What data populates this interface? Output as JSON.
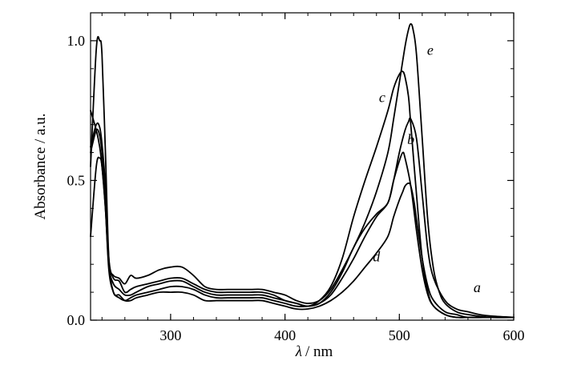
{
  "chart_data": {
    "type": "line",
    "xlabel": "λ / nm",
    "xlabel_var": "λ",
    "xlabel_unit": "/ nm",
    "ylabel": "Absorbance / a.u.",
    "xlim": [
      230,
      600
    ],
    "ylim": [
      0.0,
      1.1
    ],
    "x_ticks": [
      300,
      400,
      500,
      600
    ],
    "x_tick_labels": [
      "300",
      "400",
      "500",
      "600"
    ],
    "x_minor_step": 20,
    "y_ticks": [
      0.0,
      0.5,
      1.0
    ],
    "y_tick_labels": [
      "0.0",
      "0.5",
      "1.0"
    ],
    "y_minor_step": 0.1,
    "grid": false,
    "series": [
      {
        "name": "a",
        "color": "#000000",
        "x": [
          230,
          235,
          238,
          240,
          243,
          246,
          250,
          255,
          260,
          265,
          270,
          280,
          290,
          300,
          310,
          320,
          330,
          340,
          350,
          360,
          370,
          380,
          390,
          400,
          410,
          420,
          430,
          440,
          450,
          460,
          470,
          480,
          490,
          495,
          500,
          505,
          508,
          510,
          515,
          520,
          525,
          530,
          540,
          550,
          560,
          570,
          580,
          600
        ],
        "y": [
          0.3,
          0.55,
          0.58,
          0.55,
          0.4,
          0.18,
          0.1,
          0.08,
          0.07,
          0.08,
          0.09,
          0.1,
          0.11,
          0.12,
          0.12,
          0.11,
          0.09,
          0.08,
          0.08,
          0.08,
          0.08,
          0.08,
          0.07,
          0.06,
          0.05,
          0.05,
          0.06,
          0.1,
          0.17,
          0.26,
          0.33,
          0.38,
          0.42,
          0.5,
          0.6,
          0.68,
          0.71,
          0.72,
          0.65,
          0.45,
          0.25,
          0.15,
          0.07,
          0.04,
          0.03,
          0.02,
          0.015,
          0.01
        ]
      },
      {
        "name": "b",
        "color": "#000000",
        "x": [
          230,
          235,
          238,
          240,
          243,
          246,
          250,
          255,
          260,
          265,
          270,
          280,
          290,
          300,
          310,
          320,
          330,
          340,
          350,
          360,
          370,
          380,
          390,
          400,
          410,
          420,
          430,
          440,
          450,
          460,
          470,
          480,
          490,
          495,
          500,
          503,
          505,
          510,
          515,
          520,
          525,
          530,
          540,
          550,
          560,
          570,
          580,
          600
        ],
        "y": [
          0.6,
          0.68,
          0.66,
          0.6,
          0.45,
          0.2,
          0.13,
          0.11,
          0.09,
          0.09,
          0.1,
          0.12,
          0.13,
          0.14,
          0.14,
          0.12,
          0.1,
          0.09,
          0.09,
          0.09,
          0.09,
          0.09,
          0.08,
          0.07,
          0.06,
          0.05,
          0.06,
          0.09,
          0.15,
          0.22,
          0.3,
          0.37,
          0.42,
          0.5,
          0.57,
          0.6,
          0.58,
          0.48,
          0.32,
          0.18,
          0.09,
          0.05,
          0.02,
          0.01,
          0.01,
          0.01,
          0.01,
          0.01
        ]
      },
      {
        "name": "c",
        "color": "#000000",
        "x": [
          230,
          235,
          238,
          240,
          243,
          246,
          250,
          255,
          260,
          265,
          270,
          280,
          290,
          300,
          310,
          320,
          330,
          340,
          350,
          360,
          370,
          380,
          390,
          400,
          410,
          420,
          430,
          440,
          450,
          460,
          470,
          480,
          490,
          495,
          500,
          503,
          505,
          508,
          510,
          515,
          520,
          525,
          530,
          540,
          550,
          560,
          580,
          600
        ],
        "y": [
          0.62,
          0.7,
          0.69,
          0.63,
          0.48,
          0.22,
          0.15,
          0.14,
          0.1,
          0.11,
          0.12,
          0.13,
          0.14,
          0.15,
          0.15,
          0.13,
          0.11,
          0.1,
          0.1,
          0.1,
          0.1,
          0.1,
          0.09,
          0.07,
          0.06,
          0.05,
          0.07,
          0.12,
          0.22,
          0.37,
          0.5,
          0.62,
          0.75,
          0.83,
          0.88,
          0.89,
          0.87,
          0.8,
          0.7,
          0.45,
          0.22,
          0.1,
          0.05,
          0.02,
          0.01,
          0.01,
          0.01,
          0.01
        ]
      },
      {
        "name": "d",
        "color": "#000000",
        "x": [
          230,
          235,
          238,
          240,
          243,
          246,
          250,
          255,
          260,
          265,
          270,
          280,
          290,
          300,
          310,
          320,
          330,
          340,
          350,
          360,
          370,
          380,
          390,
          400,
          410,
          420,
          430,
          440,
          450,
          460,
          470,
          480,
          490,
          495,
          500,
          503,
          505,
          508,
          510,
          513,
          515,
          520,
          525,
          530,
          540,
          550,
          560,
          580,
          600
        ],
        "y": [
          0.55,
          0.97,
          1.0,
          0.95,
          0.6,
          0.22,
          0.1,
          0.09,
          0.07,
          0.07,
          0.08,
          0.09,
          0.1,
          0.1,
          0.1,
          0.09,
          0.07,
          0.07,
          0.07,
          0.07,
          0.07,
          0.07,
          0.06,
          0.05,
          0.04,
          0.04,
          0.05,
          0.07,
          0.1,
          0.14,
          0.19,
          0.24,
          0.3,
          0.37,
          0.43,
          0.46,
          0.48,
          0.49,
          0.48,
          0.42,
          0.36,
          0.22,
          0.12,
          0.07,
          0.03,
          0.02,
          0.01,
          0.01,
          0.01
        ]
      },
      {
        "name": "e",
        "color": "#000000",
        "x": [
          230,
          235,
          238,
          240,
          243,
          246,
          250,
          255,
          260,
          265,
          270,
          280,
          290,
          300,
          310,
          320,
          330,
          340,
          350,
          360,
          370,
          380,
          390,
          400,
          410,
          420,
          430,
          440,
          450,
          460,
          470,
          480,
          490,
          495,
          500,
          505,
          508,
          510,
          512,
          515,
          520,
          525,
          530,
          535,
          540,
          550,
          560,
          580,
          600
        ],
        "y": [
          0.75,
          0.68,
          0.62,
          0.55,
          0.4,
          0.2,
          0.16,
          0.15,
          0.13,
          0.16,
          0.15,
          0.16,
          0.18,
          0.19,
          0.19,
          0.16,
          0.12,
          0.11,
          0.11,
          0.11,
          0.11,
          0.11,
          0.1,
          0.09,
          0.07,
          0.06,
          0.07,
          0.11,
          0.18,
          0.26,
          0.35,
          0.46,
          0.6,
          0.72,
          0.85,
          0.98,
          1.04,
          1.06,
          1.04,
          0.95,
          0.65,
          0.35,
          0.18,
          0.1,
          0.06,
          0.03,
          0.02,
          0.01,
          0.01
        ]
      }
    ],
    "labels": [
      {
        "text": "a",
        "x": 568,
        "y": 0.1
      },
      {
        "text": "b",
        "x": 510,
        "y": 0.63
      },
      {
        "text": "c",
        "x": 485,
        "y": 0.78
      },
      {
        "text": "d",
        "x": 480,
        "y": 0.21
      },
      {
        "text": "e",
        "x": 527,
        "y": 0.95
      }
    ]
  }
}
